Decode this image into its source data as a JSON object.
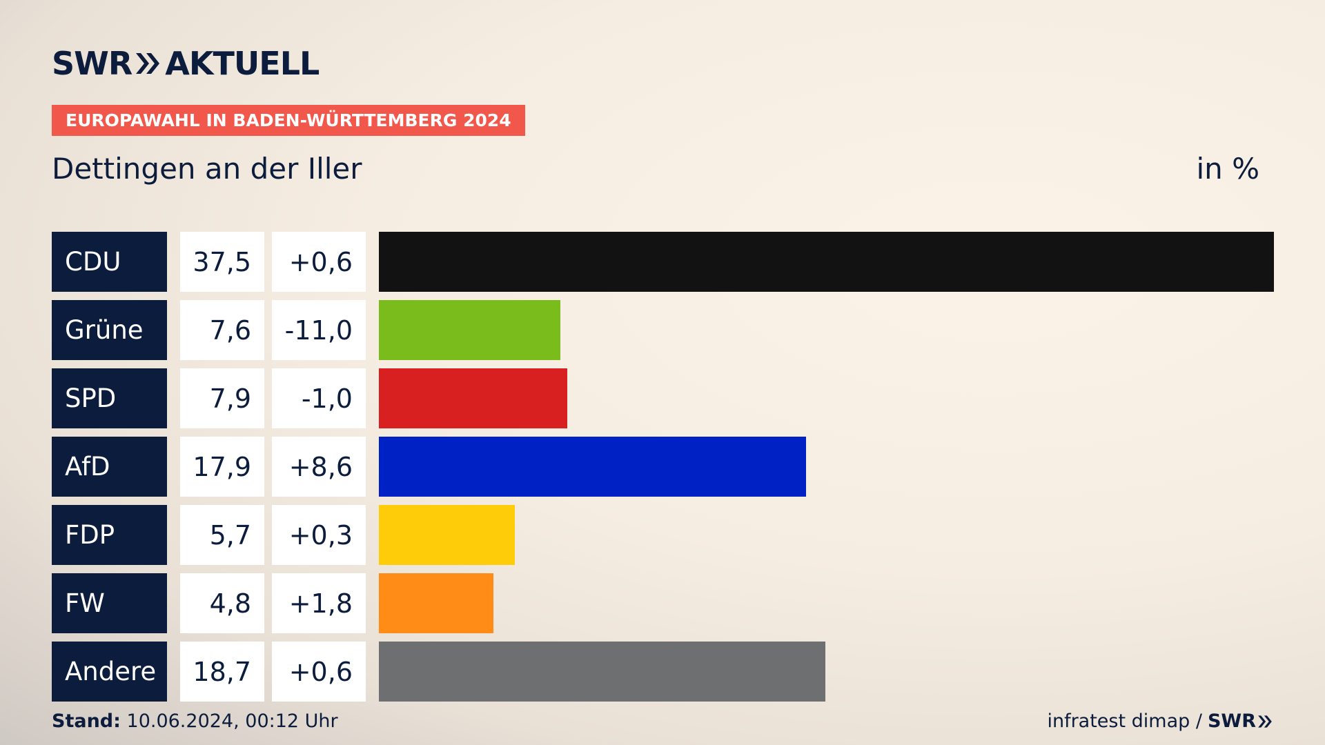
{
  "header": {
    "logo_swr": "SWR",
    "logo_aktuell": "AKTUELL",
    "tag": "EUROPAWAHL IN BADEN-WÜRTTEMBERG 2024",
    "place": "Dettingen an der Iller",
    "unit": "in %"
  },
  "footer": {
    "stand_label": "Stand:",
    "stand_value": "10.06.2024, 00:12 Uhr",
    "source": "infratest dimap /",
    "source_logo": "SWR"
  },
  "colors": {
    "navy": "#0c1c3c",
    "accent": "#f2574b"
  },
  "chart_data": {
    "type": "bar",
    "title": "Dettingen an der Iller",
    "unit": "in %",
    "categories": [
      "CDU",
      "Grüne",
      "SPD",
      "AfD",
      "FDP",
      "FW",
      "Andere"
    ],
    "values": [
      37.5,
      7.6,
      7.9,
      17.9,
      5.7,
      4.8,
      18.7
    ],
    "labels": [
      "37,5",
      "7,6",
      "7,9",
      "17,9",
      "5,7",
      "4,8",
      "18,7"
    ],
    "diffs": [
      "+0,6",
      "-11,0",
      "-1,0",
      "+8,6",
      "+0,3",
      "+1,8",
      "+0,6"
    ],
    "colors": [
      "#121212",
      "#7bbc1d",
      "#d7201f",
      "#0022c4",
      "#ffcc0a",
      "#ff8c16",
      "#6e6f71"
    ],
    "xlim": [
      0,
      37.5
    ]
  }
}
